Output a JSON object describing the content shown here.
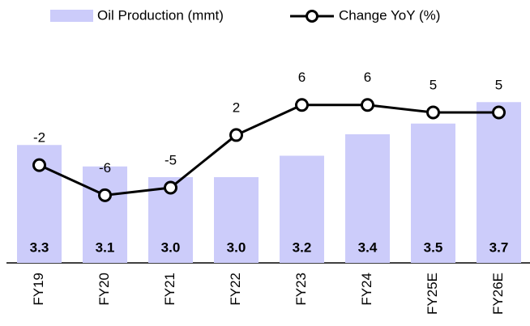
{
  "chart_data": {
    "type": "bar",
    "categories": [
      "FY19",
      "FY20",
      "FY21",
      "FY22",
      "FY23",
      "FY24",
      "FY25E",
      "FY26E"
    ],
    "series": [
      {
        "name": "Oil Production (mmt)",
        "type": "bar",
        "color": "#ccccfa",
        "values": [
          3.3,
          3.1,
          3.0,
          3.0,
          3.2,
          3.4,
          3.5,
          3.7
        ],
        "value_labels": [
          "3.3",
          "3.1",
          "3.0",
          "3.0",
          "3.2",
          "3.4",
          "3.5",
          "3.7"
        ]
      },
      {
        "name": "Change YoY (%)",
        "type": "line",
        "axis": "y2",
        "color": "#000000",
        "values": [
          -2,
          -6,
          -5,
          2,
          6,
          6,
          5,
          5
        ]
      }
    ],
    "ylim": [
      2.2,
      4.2
    ],
    "y2lim": [
      -15,
      13.5
    ],
    "legend": "top"
  }
}
